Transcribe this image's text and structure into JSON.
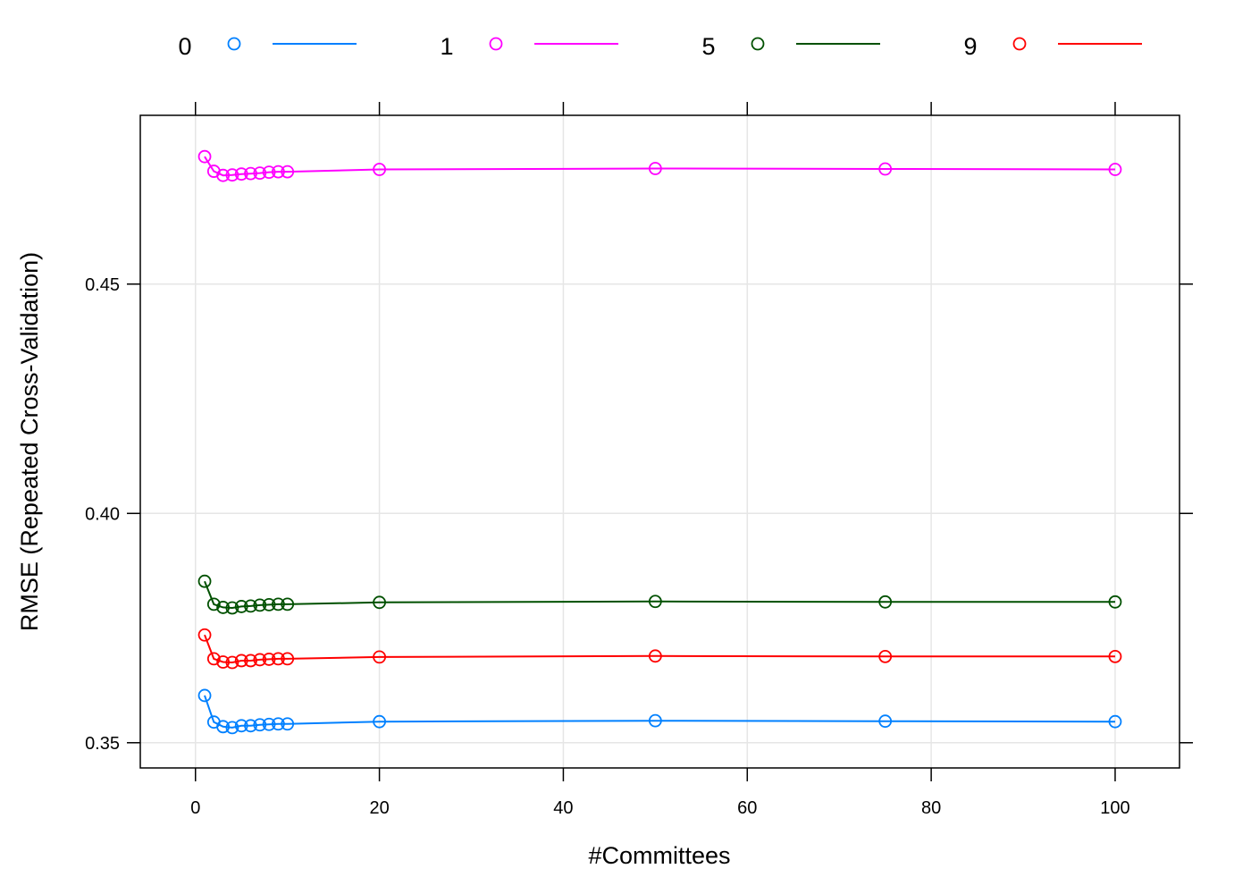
{
  "chart_data": {
    "type": "line",
    "title": "",
    "xlabel": "#Committees",
    "ylabel": "RMSE (Repeated Cross-Validation)",
    "xlim": [
      -6,
      107
    ],
    "ylim": [
      0.3445,
      0.4868
    ],
    "xticks": [
      0,
      20,
      40,
      60,
      80,
      100
    ],
    "xtick_labels": [
      "0",
      "20",
      "40",
      "60",
      "80",
      "100"
    ],
    "yticks": [
      0.35,
      0.4,
      0.45
    ],
    "ytick_labels": [
      "0.35",
      "0.40",
      "0.45"
    ],
    "grid": true,
    "legend_position": "top",
    "x": [
      1,
      2,
      3,
      4,
      5,
      6,
      7,
      8,
      9,
      10,
      20,
      50,
      75,
      100
    ],
    "series": [
      {
        "name": "0",
        "color": "#0080ff",
        "values": [
          0.3603,
          0.3545,
          0.3535,
          0.3533,
          0.3537,
          0.3537,
          0.3539,
          0.354,
          0.3541,
          0.3541,
          0.3546,
          0.3548,
          0.3547,
          0.3546
        ]
      },
      {
        "name": "1",
        "color": "#ff00ff",
        "values": [
          0.4778,
          0.4746,
          0.4737,
          0.4738,
          0.474,
          0.4741,
          0.4742,
          0.4744,
          0.4745,
          0.4745,
          0.475,
          0.4752,
          0.4751,
          0.475
        ]
      },
      {
        "name": "5",
        "color": "#005000",
        "values": [
          0.3852,
          0.3802,
          0.3795,
          0.3794,
          0.3797,
          0.3798,
          0.38,
          0.3801,
          0.3802,
          0.3802,
          0.3806,
          0.3808,
          0.3807,
          0.3807
        ]
      },
      {
        "name": "9",
        "color": "#ff0000",
        "values": [
          0.3735,
          0.3683,
          0.3676,
          0.3675,
          0.3679,
          0.3679,
          0.3681,
          0.3682,
          0.3683,
          0.3683,
          0.3687,
          0.3689,
          0.3688,
          0.3688
        ]
      }
    ]
  }
}
